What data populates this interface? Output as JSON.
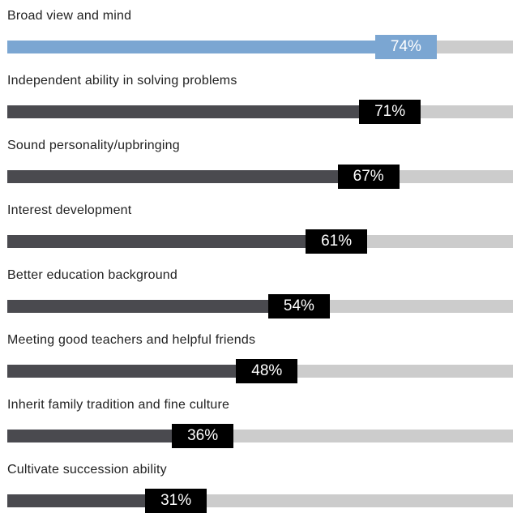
{
  "chart_data": {
    "type": "bar",
    "orientation": "horizontal",
    "value_format": "percent",
    "xlim": [
      0,
      100
    ],
    "grid": false,
    "legend": "none",
    "categories": [
      "Broad view and mind",
      "Independent ability in solving problems",
      "Sound personality/upbringing",
      "Interest development",
      "Better education background",
      "Meeting good teachers and helpful friends",
      "Inherit family tradition and fine culture",
      "Cultivate succession ability"
    ],
    "values": [
      74,
      71,
      67,
      61,
      54,
      48,
      36,
      31
    ],
    "data_labels": [
      "74%",
      "71%",
      "67%",
      "61%",
      "54%",
      "48%",
      "36%",
      "31%"
    ],
    "highlight_index": 0,
    "colors": {
      "highlight_fill": "#7ba6d2",
      "highlight_badge": "#7ba6d2",
      "bar_fill": "#4a4a4f",
      "badge": "#000000",
      "track": "#cccccc",
      "badge_text": "#ffffff",
      "label_text": "#222222"
    }
  }
}
